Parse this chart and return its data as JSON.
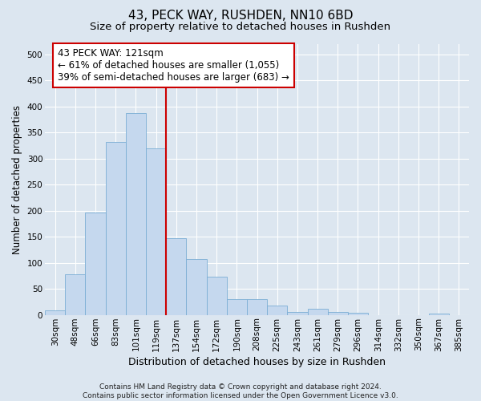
{
  "title": "43, PECK WAY, RUSHDEN, NN10 6BD",
  "subtitle": "Size of property relative to detached houses in Rushden",
  "xlabel": "Distribution of detached houses by size in Rushden",
  "ylabel": "Number of detached properties",
  "categories": [
    "30sqm",
    "48sqm",
    "66sqm",
    "83sqm",
    "101sqm",
    "119sqm",
    "137sqm",
    "154sqm",
    "172sqm",
    "190sqm",
    "208sqm",
    "225sqm",
    "243sqm",
    "261sqm",
    "279sqm",
    "296sqm",
    "314sqm",
    "332sqm",
    "350sqm",
    "367sqm",
    "385sqm"
  ],
  "values": [
    8,
    78,
    197,
    332,
    388,
    320,
    148,
    108,
    73,
    30,
    30,
    18,
    6,
    12,
    5,
    4,
    0,
    0,
    0,
    2,
    0
  ],
  "bar_color": "#c5d8ee",
  "bar_edge_color": "#7aadd4",
  "vline_color": "#cc0000",
  "annotation_text": "43 PECK WAY: 121sqm\n← 61% of detached houses are smaller (1,055)\n39% of semi-detached houses are larger (683) →",
  "annotation_box_color": "#ffffff",
  "annotation_box_edge": "#cc0000",
  "bg_color": "#dce6f0",
  "plot_bg_color": "#dce6f0",
  "footer_text": "Contains HM Land Registry data © Crown copyright and database right 2024.\nContains public sector information licensed under the Open Government Licence v3.0.",
  "ylim": [
    0,
    520
  ],
  "yticks": [
    0,
    50,
    100,
    150,
    200,
    250,
    300,
    350,
    400,
    450,
    500
  ],
  "title_fontsize": 11,
  "subtitle_fontsize": 9.5,
  "xlabel_fontsize": 9,
  "ylabel_fontsize": 8.5,
  "tick_fontsize": 7.5,
  "footer_fontsize": 6.5,
  "annotation_fontsize": 8.5
}
